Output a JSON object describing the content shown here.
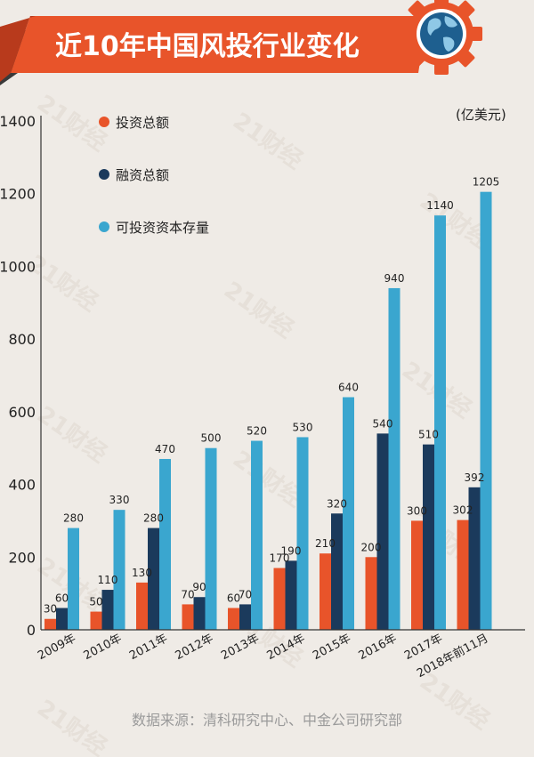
{
  "header": {
    "title": "近10年中国风投行业变化",
    "colors": {
      "banner": "#e8542a",
      "banner_dark": "#b83a1c",
      "shadow": "#3a3a3a"
    }
  },
  "chart_data": {
    "type": "bar",
    "categories": [
      "2009年",
      "2010年",
      "2011年",
      "2012年",
      "2013年",
      "2014年",
      "2015年",
      "2016年",
      "2017年",
      "2018年前11月"
    ],
    "unit_label": "(亿美元)",
    "ylim": [
      0,
      1400
    ],
    "yticks": [
      0,
      200,
      400,
      600,
      800,
      1000,
      1200,
      1400
    ],
    "grid": false,
    "legend_position": "top-left",
    "series": [
      {
        "name": "投资总额",
        "color": "#e8542a",
        "values": [
          30,
          50,
          130,
          70,
          60,
          170,
          210,
          200,
          300,
          302
        ]
      },
      {
        "name": "融资总额",
        "color": "#1b3a5c",
        "values": [
          60,
          110,
          280,
          90,
          70,
          190,
          320,
          540,
          510,
          392
        ]
      },
      {
        "name": "可投资资本存量",
        "color": "#3aa6cf",
        "values": [
          280,
          330,
          470,
          500,
          520,
          530,
          640,
          940,
          1140,
          1205
        ]
      }
    ],
    "value_labels": [
      [
        "30",
        "60",
        "280"
      ],
      [
        "50",
        "110",
        "330"
      ],
      [
        "130",
        "280",
        "470"
      ],
      [
        "70",
        "90",
        "500"
      ],
      [
        "60",
        "70",
        "520"
      ],
      [
        "170",
        "190",
        "530"
      ],
      [
        "210",
        "320",
        "640"
      ],
      [
        "200",
        "540",
        "940"
      ],
      [
        "300",
        "510",
        "1140"
      ],
      [
        "302",
        "392",
        "1205"
      ]
    ]
  },
  "footer": {
    "source": "数据来源：清科研究中心、中金公司研究部"
  },
  "watermark": {
    "text": "21财经"
  }
}
